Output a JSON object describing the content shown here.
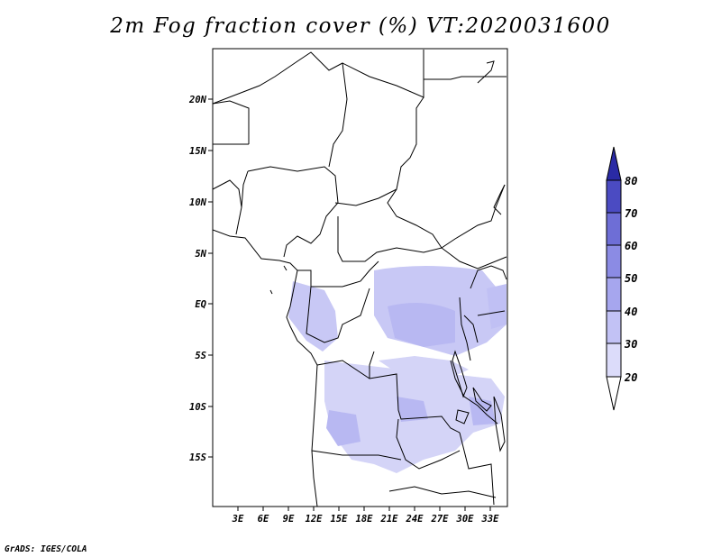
{
  "title": "2m Fog fraction cover (%) VT:2020031600",
  "credit": "GrADS: IGES/COLA",
  "map": {
    "lat_labels": [
      "20N",
      "15N",
      "10N",
      "5N",
      "EQ",
      "5S",
      "10S",
      "15S"
    ],
    "lon_labels": [
      "3E",
      "6E",
      "9E",
      "12E",
      "15E",
      "18E",
      "21E",
      "24E",
      "27E",
      "30E",
      "33E"
    ],
    "lon_range": [
      0,
      35
    ],
    "lat_range": [
      -20,
      25
    ]
  },
  "colorbar": {
    "levels": [
      "20",
      "30",
      "40",
      "50",
      "60",
      "70",
      "80"
    ],
    "colors": [
      "#ffffff",
      "#dcdcfa",
      "#c2c2f5",
      "#a6a6ee",
      "#8b8be4",
      "#6e6ed6",
      "#4b4bc2",
      "#2a2aa5"
    ]
  }
}
